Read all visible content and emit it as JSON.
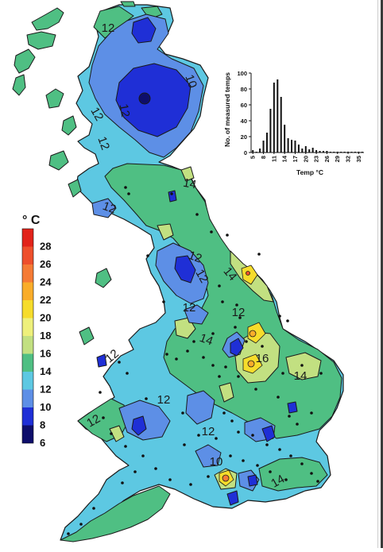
{
  "legend": {
    "unit": "° C",
    "levels": [
      {
        "value": "28",
        "color": "#e2231a"
      },
      {
        "value": "26",
        "color": "#ee4f2c"
      },
      {
        "value": "24",
        "color": "#f57b35"
      },
      {
        "value": "22",
        "color": "#f9ad2a"
      },
      {
        "value": "20",
        "color": "#f6dc2b"
      },
      {
        "value": "18",
        "color": "#eef07b"
      },
      {
        "value": "16",
        "color": "#c2e081"
      },
      {
        "value": "14",
        "color": "#4fbf83"
      },
      {
        "value": "12",
        "color": "#5dc8e2"
      },
      {
        "value": "10",
        "color": "#5d8fe6"
      },
      {
        "value": "8",
        "color": "#1f2fd6"
      },
      {
        "value": "6",
        "color": "#0e0e6b"
      }
    ]
  },
  "contour_labels": [
    "12",
    "10",
    "12",
    "12",
    "12",
    "12",
    "14",
    "12",
    "12",
    "14",
    "12",
    "12",
    "12",
    "14",
    "16",
    "14",
    "12",
    "12",
    "12",
    "10",
    "14"
  ],
  "chart_data": {
    "type": "bar",
    "ylabel": "No. of measured temps",
    "xlabel": "Temp °C",
    "ylim": [
      0,
      100
    ],
    "yticks": [
      "100",
      "80",
      "60",
      "40",
      "20",
      "0"
    ],
    "xticks": [
      "5",
      "8",
      "11",
      "14",
      "17",
      "20",
      "23",
      "26",
      "29",
      "32",
      "35"
    ],
    "x": [
      5,
      6,
      7,
      8,
      9,
      10,
      11,
      12,
      13,
      14,
      15,
      16,
      17,
      18,
      19,
      20,
      21,
      22,
      23,
      24,
      25,
      26,
      27,
      28,
      29,
      30,
      31,
      32,
      33,
      34,
      35,
      36
    ],
    "values": [
      3,
      1,
      5,
      15,
      25,
      55,
      88,
      92,
      70,
      35,
      18,
      16,
      15,
      10,
      5,
      8,
      4,
      6,
      3,
      2,
      2,
      2,
      1,
      1,
      1,
      1,
      1,
      1,
      1,
      1,
      1,
      1
    ]
  }
}
